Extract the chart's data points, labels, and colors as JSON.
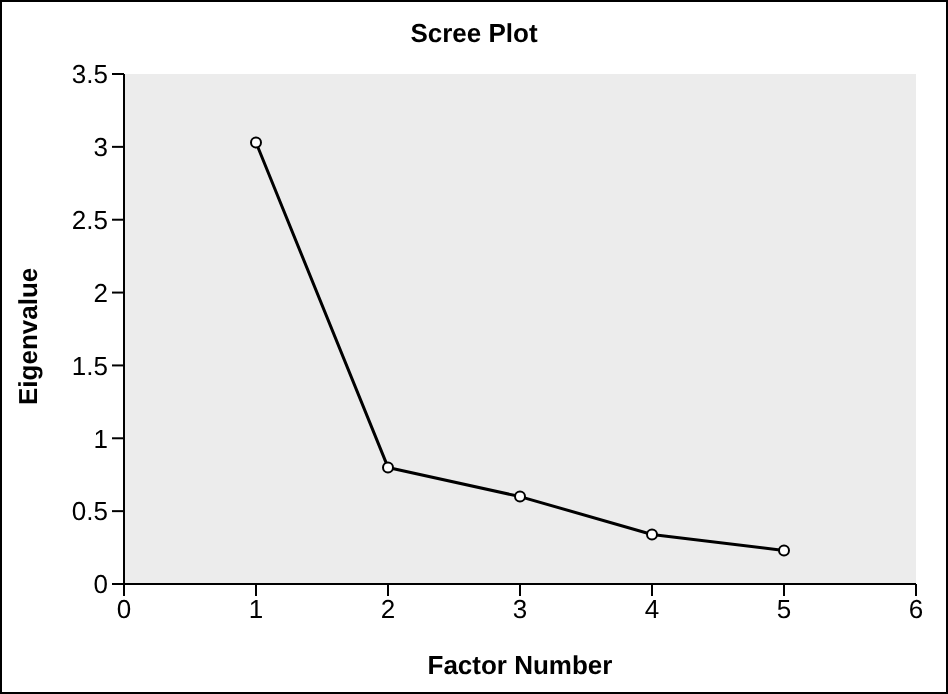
{
  "chart_data": {
    "type": "line",
    "title": "Scree Plot",
    "xlabel": "Factor Number",
    "ylabel": "Eigenvalue",
    "x": [
      1,
      2,
      3,
      4,
      5
    ],
    "series": [
      {
        "color": "#000000",
        "values": [
          3.03,
          0.8,
          0.6,
          0.34,
          0.23
        ]
      }
    ],
    "xlim": [
      0,
      6
    ],
    "xticks": [
      0,
      1,
      2,
      3,
      4,
      5,
      6
    ],
    "ylim": [
      0,
      3.5
    ],
    "yticks": [
      0,
      0.5,
      1,
      1.5,
      2,
      2.5,
      3,
      3.5
    ],
    "grid": false,
    "legend": false,
    "marker": "circle",
    "line_style": "solid"
  }
}
